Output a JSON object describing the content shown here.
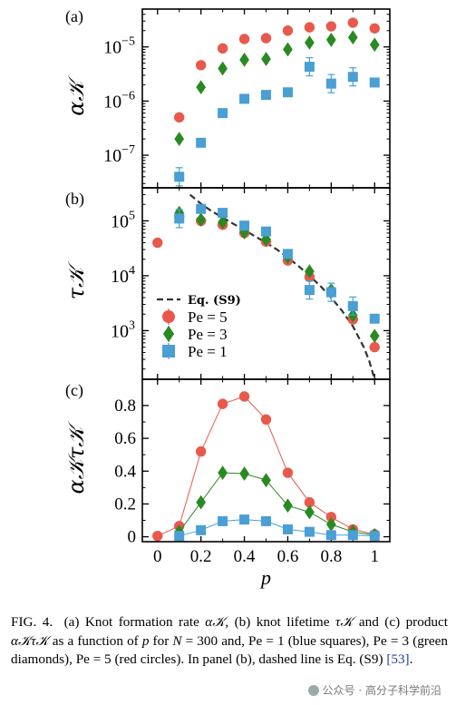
{
  "chart_data": [
    {
      "panel_label": "(a)",
      "type": "scatter",
      "yscale": "log",
      "ylabel": "α𝒦",
      "xlim": [
        -0.07,
        1.07
      ],
      "ylim": [
        2.5e-08,
        5e-05
      ],
      "yticks": [
        {
          "value": 1e-07,
          "base": "10",
          "exp": "−7"
        },
        {
          "value": 1e-06,
          "base": "10",
          "exp": "−6"
        },
        {
          "value": 1e-05,
          "base": "10",
          "exp": "−5"
        }
      ],
      "series": [
        {
          "name": "Pe = 5",
          "marker": "circle",
          "color": "#e8594c",
          "x": [
            0.1,
            0.2,
            0.3,
            0.4,
            0.5,
            0.6,
            0.7,
            0.8,
            0.9,
            1.0
          ],
          "y": [
            5e-07,
            4.6e-06,
            9.4e-06,
            1.4e-05,
            1.45e-05,
            2e-05,
            2.3e-05,
            2.4e-05,
            2.8e-05,
            2.2e-05
          ]
        },
        {
          "name": "Pe = 3",
          "marker": "diamond",
          "color": "#2a8a22",
          "x": [
            0.1,
            0.2,
            0.3,
            0.4,
            0.5,
            0.6,
            0.7,
            0.8,
            0.9,
            1.0
          ],
          "y": [
            2e-07,
            1.8e-06,
            4e-06,
            5.8e-06,
            6e-06,
            9e-06,
            1.2e-05,
            1.35e-05,
            1.5e-05,
            1.1e-05
          ]
        },
        {
          "name": "Pe = 1",
          "marker": "square",
          "color": "#4a9fd4",
          "x": [
            0.1,
            0.2,
            0.3,
            0.4,
            0.5,
            0.6,
            0.7,
            0.8,
            0.9,
            1.0
          ],
          "y": [
            4e-08,
            1.7e-07,
            6e-07,
            1.1e-06,
            1.3e-06,
            1.45e-06,
            4.3e-06,
            2.1e-06,
            2.8e-06,
            2.2e-06
          ]
        }
      ]
    },
    {
      "panel_label": "(b)",
      "type": "scatter",
      "yscale": "log",
      "ylabel": "τ𝒦",
      "xlim": [
        -0.07,
        1.07
      ],
      "ylim": [
        130,
        400000.0
      ],
      "yticks": [
        {
          "value": 1000,
          "base": "10",
          "exp": "3"
        },
        {
          "value": 10000,
          "base": "10",
          "exp": "4"
        },
        {
          "value": 100000,
          "base": "10",
          "exp": "5"
        }
      ],
      "fit": {
        "name": "Eq. (S9)",
        "x": [
          0.15,
          0.2,
          0.25,
          0.3,
          0.35,
          0.4,
          0.45,
          0.5,
          0.55,
          0.6,
          0.65,
          0.7,
          0.75,
          0.8,
          0.85,
          0.9,
          0.95,
          0.975,
          1.0
        ],
        "y": [
          300000,
          205000,
          150000,
          115000,
          88000,
          68000,
          52000,
          40000,
          30000,
          21500,
          15000,
          10000,
          6500,
          4000,
          2300,
          1200,
          500,
          280,
          130
        ]
      },
      "series": [
        {
          "name": "Pe = 5",
          "marker": "circle",
          "color": "#e8594c",
          "x": [
            0.0,
            0.1,
            0.2,
            0.3,
            0.4,
            0.5,
            0.6,
            0.7,
            0.8,
            0.9,
            1.0
          ],
          "y": [
            40000,
            120000,
            100000,
            85000,
            60000,
            42000,
            19000,
            9500,
            5000,
            1600,
            500
          ]
        },
        {
          "name": "Pe = 3",
          "marker": "diamond",
          "color": "#2a8a22",
          "x": [
            0.1,
            0.2,
            0.3,
            0.4,
            0.5,
            0.6,
            0.7,
            0.8,
            0.9,
            1.0
          ],
          "y": [
            140000,
            105000,
            95000,
            62000,
            46000,
            22000,
            12000,
            5500,
            1900,
            800
          ]
        },
        {
          "name": "Pe = 1",
          "marker": "square",
          "color": "#4a9fd4",
          "x": [
            0.1,
            0.2,
            0.3,
            0.4,
            0.5,
            0.6,
            0.7,
            0.8,
            0.9,
            1.0
          ],
          "y": [
            110000,
            165000,
            140000,
            82000,
            64000,
            25000,
            5500,
            5000,
            2800,
            1650
          ]
        }
      ],
      "legend": {
        "placement": "lower-left",
        "entries": [
          "Eq. (S9)",
          "Pe = 5",
          "Pe = 3",
          "Pe = 1"
        ]
      }
    },
    {
      "panel_label": "(c)",
      "type": "line",
      "ylabel": "α𝒦τ𝒦",
      "xlabel": "p",
      "xlim": [
        -0.07,
        1.07
      ],
      "ylim": [
        -0.03,
        0.96
      ],
      "yticks": [
        "0",
        "0.2",
        "0.4",
        "0.6",
        "0.8"
      ],
      "xticks": [
        "0",
        "0.2",
        "0.4",
        "0.6",
        "0.8",
        "1"
      ],
      "series": [
        {
          "name": "Pe = 5",
          "marker": "circle",
          "color": "#e8594c",
          "x": [
            0.0,
            0.1,
            0.2,
            0.3,
            0.4,
            0.5,
            0.6,
            0.7,
            0.8,
            0.9,
            1.0
          ],
          "y": [
            0.005,
            0.065,
            0.52,
            0.81,
            0.855,
            0.715,
            0.39,
            0.21,
            0.12,
            0.045,
            0.015
          ]
        },
        {
          "name": "Pe = 3",
          "marker": "diamond",
          "color": "#2a8a22",
          "x": [
            0.1,
            0.2,
            0.3,
            0.4,
            0.5,
            0.6,
            0.7,
            0.8,
            0.9,
            1.0
          ],
          "y": [
            0.03,
            0.21,
            0.39,
            0.385,
            0.345,
            0.19,
            0.15,
            0.075,
            0.03,
            0.01
          ]
        },
        {
          "name": "Pe = 1",
          "marker": "square",
          "color": "#4a9fd4",
          "x": [
            0.1,
            0.2,
            0.3,
            0.4,
            0.5,
            0.6,
            0.7,
            0.8,
            0.9,
            1.0
          ],
          "y": [
            0.005,
            0.04,
            0.095,
            0.105,
            0.095,
            0.045,
            0.03,
            0.01,
            0.01,
            0.005
          ]
        }
      ]
    }
  ],
  "caption": {
    "label": "FIG. 4.",
    "text_a": "(a) Knot formation rate ",
    "sym_a": "α𝒦",
    "text_b": ", (b) knot lifetime ",
    "sym_b": "τ𝒦",
    "text_c": " and (c) product ",
    "sym_c": "α𝒦τ𝒦",
    "text_d": " as a function of ",
    "sym_d": "p",
    "text_e": " for ",
    "sym_e": "N",
    "text_f": " = 300 and, Pe = 1 (blue squares), Pe = 3 (green diamonds), Pe = 5 (red circles). In panel (b), dashed line is Eq. (S9) ",
    "cite": "[53]",
    "text_g": "."
  },
  "watermark": "公众号 · 高分子科学前沿"
}
